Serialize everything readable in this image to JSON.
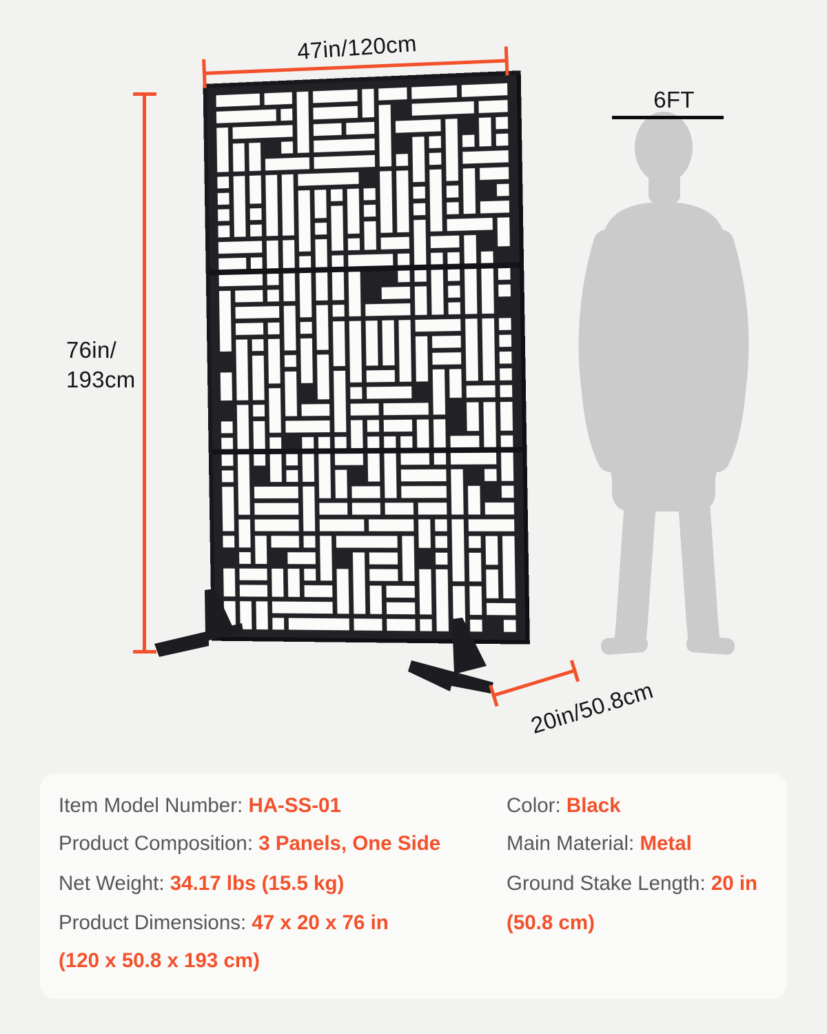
{
  "colors": {
    "accent": "#F2512B",
    "panel": "#222226",
    "panel_slot": "#FBFBFA",
    "silhouette": "#CBCBCB",
    "label_text": "#54565A",
    "dim_text": "#151515",
    "page_bg": "#F2F2F1",
    "card_bg": "#FAFAF9"
  },
  "diagram": {
    "width_label": "47in/120cm",
    "height_label": "76in/\n193cm",
    "depth_label": "20in/50.8cm",
    "person_height_label": "6FT"
  },
  "spec_card": {
    "left_rows": [
      {
        "label": "Item Model Number: ",
        "value": "HA-SS-01"
      },
      {
        "label": "Product Composition: ",
        "value": "3 Panels, One Side"
      },
      {
        "label": "Net Weight: ",
        "value": "34.17 lbs (15.5 kg)"
      },
      {
        "label": "Product Dimensions: ",
        "value": "47 x 20 x 76 in"
      },
      {
        "label": "",
        "value": "(120 x 50.8 x 193 cm)"
      }
    ],
    "right_rows": [
      {
        "label": "Color: ",
        "value": "Black"
      },
      {
        "label": "Main Material: ",
        "value": "Metal"
      },
      {
        "label": "Ground Stake Length: ",
        "value": "20 in"
      },
      {
        "label": "",
        "value": "(50.8 cm)"
      }
    ]
  }
}
